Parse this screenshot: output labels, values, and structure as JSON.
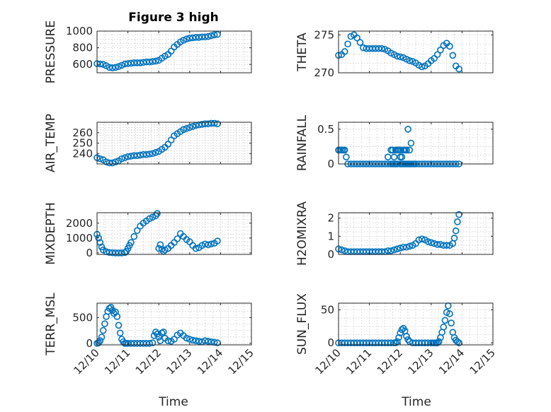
{
  "figure": {
    "title": "Figure 3 high",
    "xlabel": "Time"
  },
  "colors": {
    "marker": "#0072BD",
    "axis": "#262626",
    "grid": "#c8c8c8"
  },
  "chart_data": [
    {
      "type": "scatter",
      "id": "pressure",
      "ylabel": "PRESSURE",
      "title": "Figure 3 high",
      "ylim": [
        500,
        1000
      ],
      "yticks": [
        600,
        800,
        1000
      ],
      "ytick_labels": [
        "600",
        "800",
        "1000"
      ],
      "xlim": [
        0,
        5
      ],
      "xticks": [
        0,
        1,
        2,
        3,
        4,
        5
      ],
      "xtick_labels": [],
      "x": [
        0.0,
        0.1,
        0.2,
        0.3,
        0.4,
        0.5,
        0.6,
        0.7,
        0.8,
        0.9,
        1.0,
        1.1,
        1.2,
        1.3,
        1.4,
        1.5,
        1.6,
        1.7,
        1.8,
        1.9,
        2.0,
        2.1,
        2.2,
        2.3,
        2.4,
        2.5,
        2.6,
        2.7,
        2.8,
        2.9,
        3.0,
        3.1,
        3.2,
        3.3,
        3.4,
        3.5,
        3.6,
        3.7,
        3.8,
        3.9
      ],
      "y": [
        610,
        605,
        600,
        585,
        565,
        560,
        565,
        575,
        590,
        605,
        610,
        615,
        620,
        620,
        620,
        625,
        630,
        630,
        635,
        640,
        650,
        675,
        700,
        720,
        760,
        810,
        840,
        870,
        890,
        905,
        915,
        920,
        925,
        925,
        930,
        930,
        935,
        945,
        955,
        960
      ]
    },
    {
      "type": "scatter",
      "id": "theta",
      "ylabel": "THETA",
      "ylim": [
        270,
        275.5
      ],
      "yticks": [
        270,
        275
      ],
      "ytick_labels": [
        "270",
        "275"
      ],
      "xlim": [
        0,
        5
      ],
      "xticks": [
        0,
        1,
        2,
        3,
        4,
        5
      ],
      "xtick_labels": [],
      "x": [
        0.0,
        0.1,
        0.2,
        0.3,
        0.4,
        0.5,
        0.6,
        0.7,
        0.8,
        0.9,
        1.0,
        1.1,
        1.2,
        1.3,
        1.4,
        1.5,
        1.6,
        1.7,
        1.8,
        1.9,
        2.0,
        2.1,
        2.2,
        2.3,
        2.4,
        2.5,
        2.6,
        2.7,
        2.8,
        2.9,
        3.0,
        3.1,
        3.2,
        3.3,
        3.4,
        3.5,
        3.6,
        3.7,
        3.8,
        3.9
      ],
      "y": [
        272.3,
        272.4,
        272.8,
        273.8,
        274.8,
        275.0,
        274.6,
        274.0,
        273.3,
        273.2,
        273.2,
        273.2,
        273.2,
        273.2,
        273.2,
        273.1,
        272.9,
        272.6,
        272.4,
        272.2,
        272.1,
        272.0,
        271.8,
        271.6,
        271.5,
        271.3,
        271.0,
        270.8,
        270.9,
        271.2,
        271.6,
        271.9,
        272.4,
        273.0,
        273.6,
        273.9,
        273.5,
        272.3,
        270.9,
        270.5
      ]
    },
    {
      "type": "scatter",
      "id": "air_temp",
      "ylabel": "AIR_TEMP",
      "ylim": [
        230,
        270
      ],
      "yticks": [
        240,
        250,
        260
      ],
      "ytick_labels": [
        "240",
        "250",
        "260"
      ],
      "xlim": [
        0,
        5
      ],
      "xticks": [
        0,
        1,
        2,
        3,
        4,
        5
      ],
      "xtick_labels": [],
      "x": [
        0.0,
        0.1,
        0.2,
        0.3,
        0.4,
        0.5,
        0.6,
        0.7,
        0.8,
        0.9,
        1.0,
        1.1,
        1.2,
        1.3,
        1.4,
        1.5,
        1.6,
        1.7,
        1.8,
        1.9,
        2.0,
        2.1,
        2.2,
        2.3,
        2.4,
        2.5,
        2.6,
        2.7,
        2.8,
        2.9,
        3.0,
        3.1,
        3.2,
        3.3,
        3.4,
        3.5,
        3.6,
        3.7,
        3.8,
        3.9
      ],
      "y": [
        236,
        235,
        234,
        232,
        231,
        231,
        232,
        233,
        235,
        236,
        237,
        237.5,
        238,
        238,
        238.5,
        239,
        239,
        239.5,
        240,
        241,
        242,
        244,
        246,
        249,
        253,
        257,
        259,
        261,
        263,
        264,
        265,
        266,
        267,
        267.5,
        268,
        268.5,
        268.5,
        269,
        269,
        268.5
      ]
    },
    {
      "type": "scatter",
      "id": "rainfall",
      "ylabel": "RAINFALL",
      "ylim": [
        0,
        0.6
      ],
      "yticks": [
        0,
        0.5
      ],
      "ytick_labels": [
        "0",
        "0.5"
      ],
      "xlim": [
        0,
        5
      ],
      "xticks": [
        0,
        1,
        2,
        3,
        4,
        5
      ],
      "xtick_labels": [],
      "x": [
        0.0,
        0.05,
        0.1,
        0.15,
        0.2,
        0.25,
        0.3,
        0.4,
        0.5,
        0.6,
        0.7,
        0.8,
        0.9,
        1.0,
        1.1,
        1.2,
        1.3,
        1.4,
        1.5,
        1.6,
        1.7,
        1.75,
        1.8,
        1.85,
        1.9,
        2.0,
        2.05,
        2.1,
        2.15,
        2.2,
        2.25,
        2.3,
        2.35,
        2.4,
        2.45,
        2.5,
        2.6,
        2.7,
        2.8,
        2.9,
        3.0,
        3.1,
        3.2,
        3.3,
        3.4,
        3.5,
        3.6,
        3.7,
        3.8,
        3.9,
        1.6,
        1.7,
        1.75,
        1.8,
        1.85,
        1.9,
        1.95,
        2.0,
        2.05,
        2.1,
        2.15,
        2.2,
        2.25,
        2.3,
        2.35,
        2.0,
        2.1,
        2.2,
        1.95,
        2.0
      ],
      "y": [
        0.2,
        0.2,
        0.2,
        0.2,
        0.2,
        0.1,
        0,
        0,
        0,
        0,
        0,
        0,
        0,
        0,
        0,
        0,
        0,
        0,
        0,
        0,
        0,
        0,
        0,
        0,
        0,
        0,
        0,
        0,
        0,
        0,
        0,
        0,
        0,
        0,
        0,
        0,
        0,
        0,
        0,
        0,
        0,
        0,
        0,
        0,
        0,
        0,
        0,
        0,
        0,
        0,
        0.1,
        0.2,
        0.2,
        0.1,
        0.2,
        0.2,
        0.2,
        0.1,
        0.1,
        0.2,
        0.2,
        0.2,
        0.5,
        0.2,
        0.3,
        0.2,
        0.2,
        0.2,
        0.2,
        0.2
      ]
    },
    {
      "type": "scatter",
      "id": "mixdepth",
      "ylabel": "MIXDEPTH",
      "ylim": [
        -100,
        2700
      ],
      "yticks": [
        0,
        1000,
        2000
      ],
      "ytick_labels": [
        "0",
        "1000",
        "2000"
      ],
      "xlim": [
        0,
        5
      ],
      "xticks": [
        0,
        1,
        2,
        3,
        4,
        5
      ],
      "xtick_labels": [],
      "x": [
        0.0,
        0.05,
        0.1,
        0.15,
        0.2,
        0.3,
        0.4,
        0.5,
        0.6,
        0.7,
        0.8,
        0.9,
        0.95,
        1.0,
        1.05,
        1.1,
        1.2,
        1.3,
        1.4,
        1.5,
        1.6,
        1.7,
        1.8,
        1.9,
        1.95,
        2.0,
        2.05,
        2.1,
        2.15,
        2.2,
        2.3,
        2.4,
        2.5,
        2.6,
        2.7,
        2.8,
        2.9,
        3.0,
        3.1,
        3.2,
        3.3,
        3.4,
        3.5,
        3.6,
        3.7,
        3.8,
        3.9
      ],
      "y": [
        1250,
        1000,
        700,
        400,
        200,
        80,
        30,
        10,
        0,
        0,
        0,
        20,
        100,
        300,
        500,
        700,
        1100,
        1500,
        1800,
        2000,
        2150,
        2300,
        2400,
        2500,
        2650,
        300,
        550,
        250,
        100,
        200,
        300,
        500,
        700,
        950,
        1300,
        1100,
        900,
        750,
        500,
        300,
        350,
        500,
        600,
        550,
        600,
        650,
        800
      ]
    },
    {
      "type": "scatter",
      "id": "h2omixra",
      "ylabel": "H2OMIXRA",
      "ylim": [
        0,
        2.3
      ],
      "yticks": [
        0,
        1,
        2
      ],
      "ytick_labels": [
        "0",
        "1",
        "2"
      ],
      "xlim": [
        0,
        5
      ],
      "xticks": [
        0,
        1,
        2,
        3,
        4,
        5
      ],
      "xtick_labels": [],
      "x": [
        0.0,
        0.1,
        0.2,
        0.3,
        0.4,
        0.5,
        0.6,
        0.7,
        0.8,
        0.9,
        1.0,
        1.1,
        1.2,
        1.3,
        1.4,
        1.5,
        1.6,
        1.7,
        1.8,
        1.9,
        2.0,
        2.1,
        2.2,
        2.3,
        2.4,
        2.5,
        2.6,
        2.7,
        2.8,
        2.9,
        3.0,
        3.1,
        3.2,
        3.3,
        3.4,
        3.5,
        3.6,
        3.7,
        3.75,
        3.8,
        3.85,
        3.9
      ],
      "y": [
        0.3,
        0.25,
        0.2,
        0.15,
        0.15,
        0.15,
        0.15,
        0.15,
        0.15,
        0.15,
        0.15,
        0.15,
        0.15,
        0.15,
        0.15,
        0.15,
        0.2,
        0.2,
        0.25,
        0.3,
        0.35,
        0.4,
        0.4,
        0.45,
        0.5,
        0.6,
        0.8,
        0.85,
        0.8,
        0.7,
        0.65,
        0.6,
        0.55,
        0.55,
        0.5,
        0.5,
        0.5,
        0.6,
        0.9,
        1.3,
        1.8,
        2.2
      ]
    },
    {
      "type": "scatter",
      "id": "terr_msl",
      "ylabel": "TERR_MSL",
      "ylim": [
        -30,
        780
      ],
      "yticks": [
        0,
        500
      ],
      "ytick_labels": [
        "0",
        "500"
      ],
      "xlim": [
        0,
        5
      ],
      "xticks": [
        0,
        1,
        2,
        3,
        4,
        5
      ],
      "xtick_labels": [
        "12/10",
        "12/11",
        "12/12",
        "12/13",
        "12/14",
        "12/15"
      ],
      "x": [
        0.0,
        0.05,
        0.1,
        0.15,
        0.2,
        0.25,
        0.3,
        0.35,
        0.4,
        0.45,
        0.5,
        0.55,
        0.6,
        0.65,
        0.7,
        0.75,
        0.8,
        0.85,
        0.9,
        0.95,
        1.0,
        1.1,
        1.2,
        1.3,
        1.4,
        1.5,
        1.6,
        1.7,
        1.8,
        1.85,
        1.9,
        1.95,
        2.0,
        2.05,
        2.1,
        2.15,
        2.2,
        2.3,
        2.4,
        2.5,
        2.6,
        2.7,
        2.8,
        2.9,
        3.0,
        3.1,
        3.2,
        3.3,
        3.4,
        3.5,
        3.6,
        3.7,
        3.8,
        3.9
      ],
      "y": [
        0,
        10,
        50,
        120,
        250,
        380,
        520,
        620,
        680,
        700,
        640,
        580,
        610,
        520,
        350,
        200,
        80,
        30,
        0,
        0,
        0,
        0,
        0,
        0,
        0,
        0,
        0,
        0,
        10,
        150,
        220,
        180,
        120,
        50,
        200,
        220,
        100,
        50,
        40,
        80,
        160,
        200,
        150,
        100,
        80,
        60,
        50,
        40,
        30,
        50,
        40,
        30,
        20,
        10
      ]
    },
    {
      "type": "scatter",
      "id": "sun_flux",
      "ylabel": "SUN_FLUX",
      "ylim": [
        -3,
        60
      ],
      "yticks": [
        0,
        50
      ],
      "ytick_labels": [
        "0",
        "50"
      ],
      "xlim": [
        0,
        5
      ],
      "xticks": [
        0,
        1,
        2,
        3,
        4,
        5
      ],
      "xtick_labels": [
        "12/10",
        "12/11",
        "12/12",
        "12/13",
        "12/14",
        "12/15"
      ],
      "x": [
        0.0,
        0.1,
        0.2,
        0.3,
        0.4,
        0.5,
        0.6,
        0.7,
        0.8,
        0.9,
        1.0,
        1.1,
        1.2,
        1.3,
        1.4,
        1.5,
        1.6,
        1.7,
        1.8,
        1.85,
        1.9,
        1.95,
        2.0,
        2.05,
        2.1,
        2.15,
        2.2,
        2.25,
        2.3,
        2.4,
        2.5,
        2.6,
        2.7,
        2.8,
        2.9,
        3.0,
        3.05,
        3.1,
        3.15,
        3.2,
        3.25,
        3.3,
        3.35,
        3.4,
        3.45,
        3.5,
        3.55,
        3.6,
        3.65,
        3.7,
        3.75,
        3.8,
        3.85,
        3.9
      ],
      "y": [
        0,
        0,
        0,
        0,
        0,
        0,
        0,
        0,
        0,
        0,
        0,
        0,
        0,
        0,
        0,
        0,
        0,
        0,
        0,
        0,
        2,
        8,
        15,
        20,
        22,
        18,
        10,
        5,
        2,
        0,
        0,
        0,
        0,
        0,
        0,
        0,
        0,
        0,
        0,
        0,
        2,
        8,
        16,
        24,
        34,
        46,
        56,
        44,
        30,
        16,
        8,
        4,
        2,
        0
      ]
    }
  ]
}
